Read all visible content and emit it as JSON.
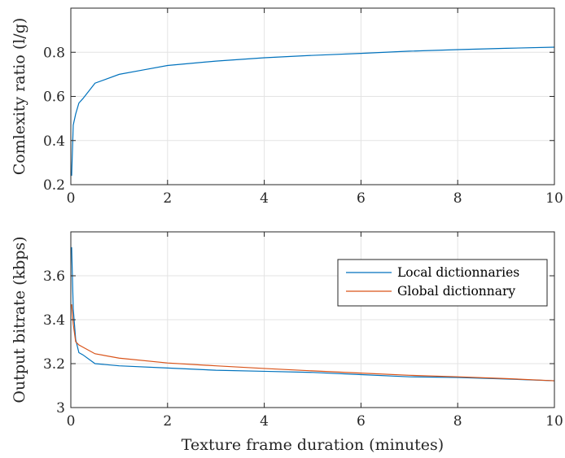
{
  "chart_data": [
    {
      "type": "line",
      "ylabel": "Comlexity ratio (l/g)",
      "xlabel": "",
      "xlim": [
        0,
        10
      ],
      "ylim": [
        0.2,
        1.0
      ],
      "xticks": [
        0,
        2,
        4,
        6,
        8,
        10
      ],
      "yticks": [
        0.2,
        0.4,
        0.6,
        0.8
      ],
      "grid": true,
      "series": [
        {
          "color": "#0072BD",
          "x": [
            0.0167,
            0.05,
            0.1,
            0.167,
            0.25,
            0.5,
            1,
            1.5,
            2,
            3,
            4,
            5,
            6,
            7,
            8,
            9,
            10
          ],
          "y": [
            0.24,
            0.47,
            0.52,
            0.57,
            0.59,
            0.66,
            0.7,
            0.72,
            0.74,
            0.76,
            0.775,
            0.786,
            0.795,
            0.805,
            0.812,
            0.818,
            0.823
          ]
        }
      ]
    },
    {
      "type": "line",
      "ylabel": "Output bitrate (kbps)",
      "xlabel": "Texture frame duration (minutes)",
      "xlim": [
        0,
        10
      ],
      "ylim": [
        3.0,
        3.8
      ],
      "xticks": [
        0,
        2,
        4,
        6,
        8,
        10
      ],
      "yticks": [
        3,
        3.2,
        3.4,
        3.6
      ],
      "grid": true,
      "legend": "top-right",
      "series": [
        {
          "name": "Local dictionnaries",
          "color": "#0072BD",
          "x": [
            0.0167,
            0.05,
            0.1,
            0.167,
            0.25,
            0.5,
            1,
            2,
            3,
            4,
            5,
            6,
            7,
            8,
            9,
            10
          ],
          "y": [
            3.73,
            3.45,
            3.31,
            3.25,
            3.24,
            3.2,
            3.19,
            3.18,
            3.17,
            3.165,
            3.16,
            3.15,
            3.14,
            3.137,
            3.13,
            3.122
          ]
        },
        {
          "name": "Global dictionnary",
          "color": "#D95319",
          "x": [
            0.0167,
            0.05,
            0.1,
            0.167,
            0.25,
            0.5,
            1,
            2,
            3,
            4,
            5,
            6,
            7,
            8,
            9,
            10
          ],
          "y": [
            3.47,
            3.38,
            3.3,
            3.285,
            3.275,
            3.245,
            3.225,
            3.203,
            3.19,
            3.178,
            3.167,
            3.157,
            3.147,
            3.14,
            3.132,
            3.122
          ]
        }
      ]
    }
  ]
}
